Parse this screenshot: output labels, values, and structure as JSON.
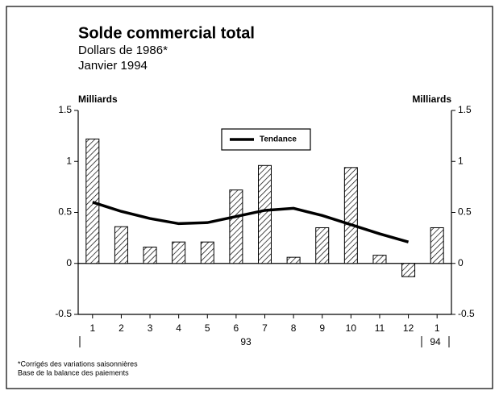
{
  "chart_data": {
    "type": "bar",
    "title": "Solde commercial total",
    "subtitle": "Dollars de 1986*",
    "date": "Janvier 1994",
    "y_label": "Milliards",
    "y2_label": "Milliards",
    "categories": [
      "1",
      "2",
      "3",
      "4",
      "5",
      "6",
      "7",
      "8",
      "9",
      "10",
      "11",
      "12",
      "1"
    ],
    "year_labels": [
      "93",
      "94"
    ],
    "values": [
      1.22,
      0.36,
      0.16,
      0.21,
      0.21,
      0.72,
      0.96,
      0.06,
      0.35,
      0.94,
      0.08,
      -0.13,
      0.35
    ],
    "color": "#000000",
    "trend": {
      "name": "Tendance",
      "color": "#000000",
      "values": [
        0.6,
        0.51,
        0.44,
        0.39,
        0.4,
        0.46,
        0.52,
        0.54,
        0.47,
        0.38,
        0.29,
        0.21,
        null
      ]
    },
    "legend": "top",
    "ylim": [
      -0.5,
      1.5
    ],
    "yticks": [
      -0.5,
      0,
      0.5,
      1,
      1.5
    ],
    "y2lim": [
      -0.5,
      1.5
    ],
    "y2ticks": [
      -0.5,
      0,
      0.5,
      1,
      1.5
    ],
    "footnotes": [
      "*Corrigés des variations saisonnières",
      "Base de la balance des paiements"
    ]
  }
}
